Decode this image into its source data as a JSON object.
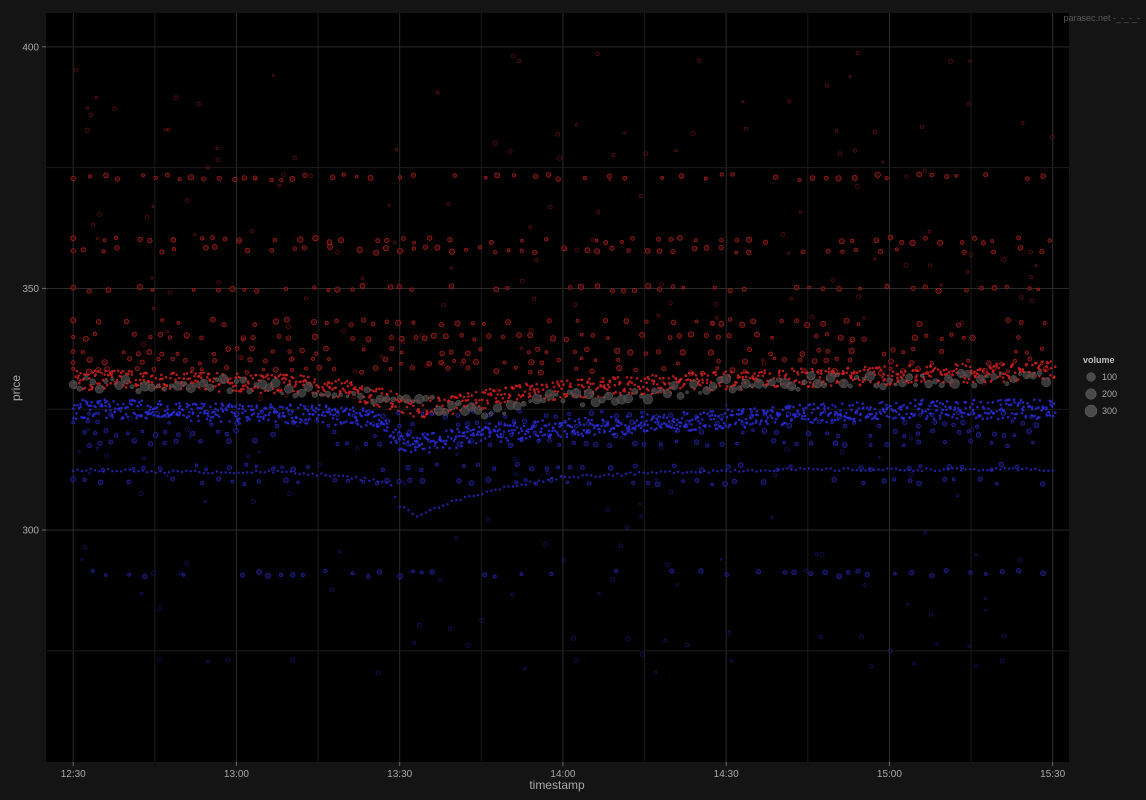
{
  "watermark": "parasec.net -_-_-_-",
  "colors": {
    "background": "#141414",
    "panel": "#000000",
    "grid_major": "#2b2b2b",
    "grid_minor": "#1b1b1b",
    "ask": "#d02020",
    "bid": "#2a2ad6",
    "trade": "#5a5a5a"
  },
  "chart_data": {
    "type": "scatter",
    "xlabel": "timestamp",
    "ylabel": "price",
    "x_ticks": [
      "12:30",
      "13:00",
      "13:30",
      "14:00",
      "14:30",
      "15:00",
      "15:30"
    ],
    "xlim": [
      "12:25",
      "15:33"
    ],
    "y_ticks": [
      300,
      350,
      400
    ],
    "ylim": [
      252,
      407
    ],
    "grid": true,
    "legend": {
      "title": "volume",
      "position": "right",
      "entries": [
        {
          "label": "100",
          "value": 100
        },
        {
          "label": "200",
          "value": 200
        },
        {
          "label": "300",
          "value": 300
        }
      ]
    },
    "series": [
      {
        "side": "ask",
        "color": "#d02020",
        "min_line": [
          [
            "12:30",
            329
          ],
          [
            "12:45",
            329
          ],
          [
            "13:00",
            328.5
          ],
          [
            "13:15",
            328
          ],
          [
            "13:28",
            325
          ],
          [
            "13:32",
            323
          ],
          [
            "13:40",
            324
          ],
          [
            "13:50",
            326
          ],
          [
            "14:00",
            327
          ],
          [
            "14:15",
            328
          ],
          [
            "14:30",
            329
          ],
          [
            "15:00",
            330
          ],
          [
            "15:30",
            331
          ]
        ],
        "levels": [
          373,
          360,
          358,
          350,
          343,
          340,
          337,
          335,
          333
        ]
      },
      {
        "side": "bid",
        "color": "#2a2ad6",
        "max_line": [
          [
            "12:30",
            327
          ],
          [
            "12:45",
            327
          ],
          [
            "13:00",
            326
          ],
          [
            "13:15",
            326
          ],
          [
            "13:25",
            325
          ],
          [
            "13:30",
            320
          ],
          [
            "13:35",
            320
          ],
          [
            "13:45",
            322
          ],
          [
            "14:00",
            323
          ],
          [
            "14:15",
            324
          ],
          [
            "14:30",
            325
          ],
          [
            "15:00",
            327
          ],
          [
            "15:30",
            327
          ]
        ],
        "levels": [
          324,
          322,
          320,
          318,
          313,
          310,
          291
        ]
      },
      {
        "side": "bid-deep",
        "color": "#2a2ad6",
        "line": [
          [
            "12:30",
            312.5
          ],
          [
            "12:50",
            312
          ],
          [
            "13:10",
            312
          ],
          [
            "13:20",
            311
          ],
          [
            "13:28",
            310
          ],
          [
            "13:30",
            305
          ],
          [
            "13:33",
            303
          ],
          [
            "13:40",
            306
          ],
          [
            "13:50",
            309
          ],
          [
            "14:00",
            311
          ],
          [
            "14:20",
            312
          ],
          [
            "14:40",
            312.5
          ],
          [
            "15:00",
            312.5
          ],
          [
            "15:30",
            312.5
          ]
        ]
      },
      {
        "side": "trade",
        "color": "#5a5a5a",
        "line": [
          [
            "12:30",
            330
          ],
          [
            "13:00",
            330
          ],
          [
            "13:30",
            327
          ],
          [
            "13:45",
            325
          ],
          [
            "14:00",
            327
          ],
          [
            "14:30",
            330
          ],
          [
            "15:00",
            331
          ],
          [
            "15:30",
            331
          ]
        ]
      }
    ]
  }
}
